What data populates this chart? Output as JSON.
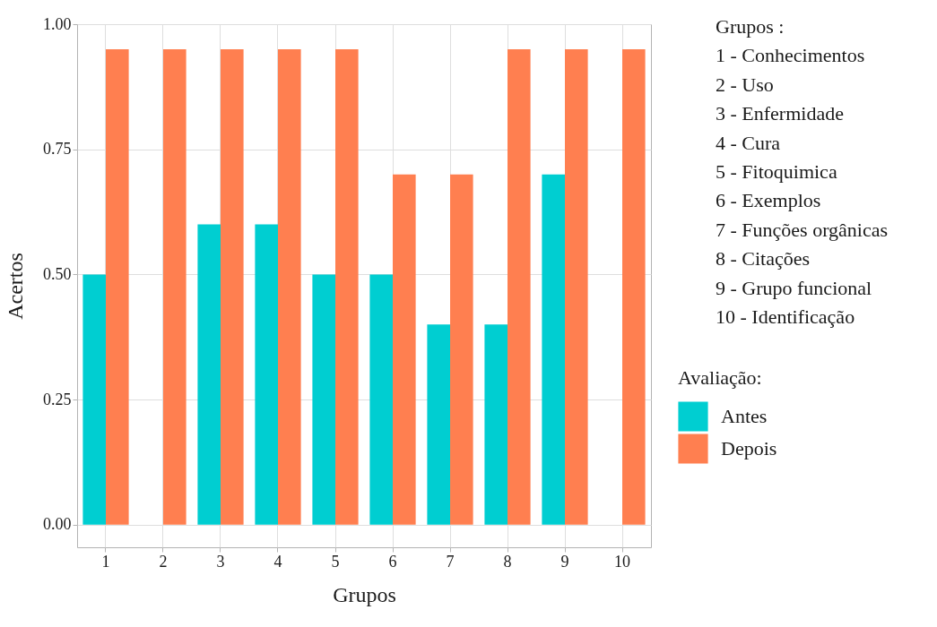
{
  "chart_data": {
    "type": "bar",
    "xlabel": "Grupos",
    "ylabel": "Acertos",
    "legend_title": "Avaliação:",
    "categories": [
      "1",
      "2",
      "3",
      "4",
      "5",
      "6",
      "7",
      "8",
      "9",
      "10"
    ],
    "series": [
      {
        "name": "Antes",
        "color": "#00ced1",
        "values": [
          0.5,
          0,
          0.6,
          0.6,
          0.5,
          0.5,
          0.4,
          0.4,
          0.7,
          0
        ]
      },
      {
        "name": "Depois",
        "color": "#ff7f50",
        "values": [
          0.95,
          0.95,
          0.95,
          0.95,
          0.95,
          0.7,
          0.7,
          0.95,
          0.95,
          0.95
        ]
      }
    ],
    "ylim": [
      -0.045,
      1.0
    ],
    "yticks": [
      {
        "value": 0,
        "label": "0.00"
      },
      {
        "value": 0.25,
        "label": "0.25"
      },
      {
        "value": 0.5,
        "label": "0.50"
      },
      {
        "value": 0.75,
        "label": "0.75"
      },
      {
        "value": 1,
        "label": "1.00"
      }
    ],
    "grid": true,
    "legend": "right",
    "annotations": [
      "Grupos :",
      "1 - Conhecimentos",
      "2 - Uso",
      "3 - Enfermidade",
      "4 - Cura",
      "5 - Fitoquimica",
      "6 - Exemplos",
      "7 - Funções orgânicas",
      "8 - Citações",
      "9 - Grupo funcional",
      "10 - Identificação"
    ]
  }
}
